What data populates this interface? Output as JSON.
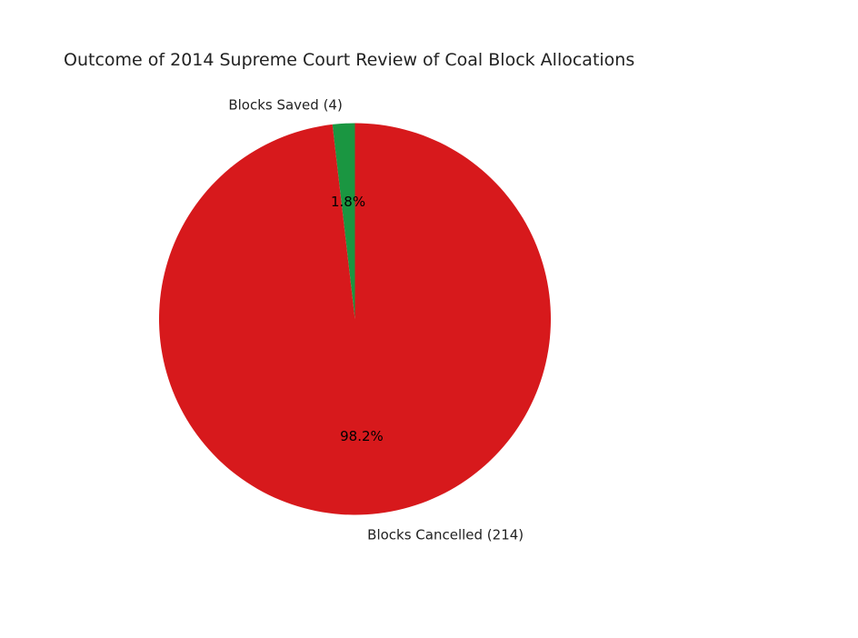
{
  "chart_data": {
    "type": "pie",
    "title": "Outcome of 2014 Supreme Court Review of Coal Block Allocations",
    "start_angle_deg": 90,
    "direction": "counterclockwise",
    "slices": [
      {
        "label": "Blocks Saved (4)",
        "value": 4,
        "pct_label": "1.8%",
        "color": "#1a9641"
      },
      {
        "label": "Blocks Cancelled (214)",
        "value": 214,
        "pct_label": "98.2%",
        "color": "#d7191c"
      }
    ]
  }
}
